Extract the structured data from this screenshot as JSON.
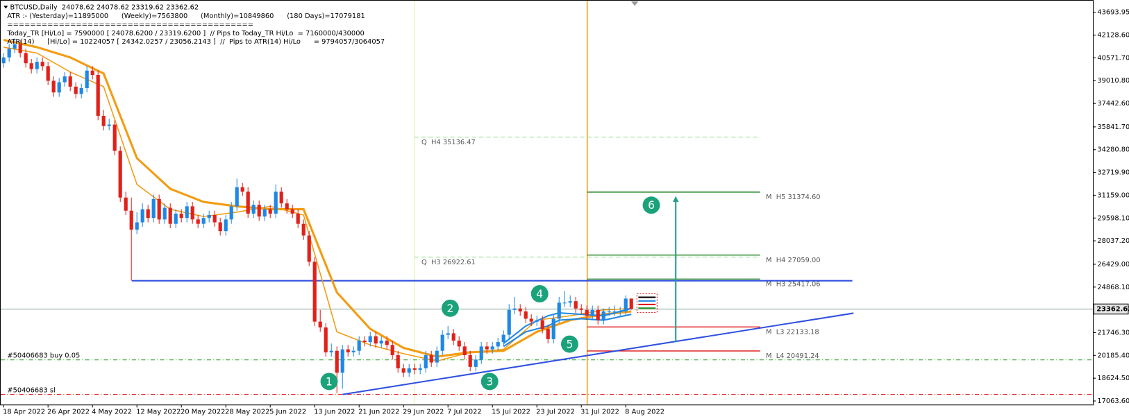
{
  "chart_data": {
    "type": "candlestick",
    "title": "BTCUSD,Daily  24078.62 24078.62 23319.62 23362.62",
    "info_lines": [
      "ATR :- (Yesterday)=11895000      (Weekly)=7563800      (Monthly)=10849860      (180 Days)=17079181",
      "===========================================",
      "Today_TR [Hi/Lo] = 7590000 [ 24078.6200 / 23319.6200 ]  // Pips to Today_TR Hi/Lo  = 7160000/430000",
      "ATR(14)      [Hi/Lo] = 10224057 [ 24342.0257 / 23056.2143 ]  //  Pips to ATR(14) Hi/Lo      = 9794057/3064057"
    ],
    "up_color": "#1e88e5",
    "down_color": "#e0211a",
    "categories": [
      "18 Apr 2022",
      null,
      null,
      null,
      null,
      null,
      null,
      null,
      "26 Apr 2022",
      null,
      null,
      null,
      null,
      null,
      null,
      null,
      "4 May 2022",
      null,
      null,
      null,
      null,
      null,
      null,
      null,
      "12 May 2022",
      null,
      null,
      null,
      null,
      null,
      null,
      null,
      "20 May 2022",
      null,
      null,
      null,
      null,
      null,
      null,
      null,
      "28 May 2022",
      null,
      null,
      null,
      null,
      null,
      null,
      null,
      "5 Jun 2022",
      null,
      null,
      null,
      null,
      null,
      null,
      null,
      "13 Jun 2022",
      null,
      null,
      null,
      null,
      null,
      null,
      null,
      "21 Jun 2022",
      null,
      null,
      null,
      null,
      null,
      null,
      null,
      "29 Jun 2022",
      null,
      null,
      null,
      null,
      null,
      null,
      null,
      "7 Jul 2022",
      null,
      null,
      null,
      null,
      null,
      null,
      null,
      "15 Jul 2022",
      null,
      null,
      null,
      null,
      null,
      null,
      null,
      "23 Jul 2022",
      null,
      null,
      null,
      null,
      null,
      null,
      null,
      "31 Jul 2022",
      null,
      null,
      null,
      null,
      null,
      null,
      null,
      "8 Aug 2022",
      null
    ],
    "ohlc": [
      [
        40200,
        40900,
        39900,
        40600
      ],
      [
        40600,
        41500,
        40300,
        41200
      ],
      [
        41200,
        41900,
        40900,
        41500
      ],
      [
        41500,
        41800,
        40600,
        40900
      ],
      [
        40900,
        41200,
        39900,
        40200
      ],
      [
        40200,
        40500,
        39500,
        39800
      ],
      [
        39800,
        40600,
        39500,
        40300
      ],
      [
        40300,
        40600,
        39700,
        40000
      ],
      [
        40000,
        40300,
        38700,
        39000
      ],
      [
        39000,
        39300,
        37900,
        38200
      ],
      [
        38200,
        39200,
        37900,
        38900
      ],
      [
        38900,
        39600,
        38600,
        39300
      ],
      [
        39300,
        39600,
        38300,
        38600
      ],
      [
        38600,
        38900,
        37800,
        38100
      ],
      [
        38100,
        38800,
        37800,
        38500
      ],
      [
        38500,
        40000,
        38200,
        39700
      ],
      [
        39700,
        40000,
        39100,
        39400
      ],
      [
        39400,
        39700,
        36300,
        36600
      ],
      [
        36600,
        37000,
        35600,
        35900
      ],
      [
        35900,
        36400,
        35600,
        36000
      ],
      [
        36000,
        36300,
        33900,
        34200
      ],
      [
        34200,
        34500,
        30700,
        31000
      ],
      [
        31000,
        31400,
        29800,
        30100
      ],
      [
        30100,
        31000,
        25300,
        28800
      ],
      [
        28800,
        30000,
        28500,
        29300
      ],
      [
        29300,
        30600,
        29000,
        30200
      ],
      [
        30200,
        30500,
        29300,
        29600
      ],
      [
        29600,
        31200,
        29300,
        30900
      ],
      [
        30900,
        31200,
        29200,
        29500
      ],
      [
        29500,
        30600,
        29200,
        30300
      ],
      [
        30300,
        30600,
        28900,
        29200
      ],
      [
        29200,
        30200,
        28900,
        29900
      ],
      [
        29900,
        30200,
        29300,
        29600
      ],
      [
        29600,
        30700,
        29300,
        30400
      ],
      [
        30400,
        30700,
        29200,
        29500
      ],
      [
        29500,
        29800,
        28900,
        29200
      ],
      [
        29200,
        29900,
        28900,
        29600
      ],
      [
        29600,
        30100,
        29300,
        29800
      ],
      [
        29800,
        30100,
        29000,
        29300
      ],
      [
        29300,
        29600,
        28400,
        28700
      ],
      [
        28700,
        29800,
        28400,
        29500
      ],
      [
        29500,
        30700,
        29200,
        30400
      ],
      [
        30400,
        32300,
        30100,
        31700
      ],
      [
        31700,
        32000,
        31100,
        31400
      ],
      [
        31400,
        31700,
        29600,
        29900
      ],
      [
        29900,
        30800,
        29600,
        30500
      ],
      [
        30500,
        30800,
        29400,
        29700
      ],
      [
        29700,
        30500,
        29400,
        30200
      ],
      [
        30200,
        30500,
        29600,
        29900
      ],
      [
        29900,
        31900,
        29600,
        31400
      ],
      [
        31400,
        31700,
        30300,
        30600
      ],
      [
        30600,
        30900,
        29900,
        30200
      ],
      [
        30200,
        30500,
        29600,
        29900
      ],
      [
        29900,
        30200,
        28900,
        29200
      ],
      [
        29200,
        29500,
        28100,
        28400
      ],
      [
        28400,
        28700,
        26300,
        26600
      ],
      [
        26600,
        26900,
        22200,
        22500
      ],
      [
        22500,
        23300,
        21800,
        22100
      ],
      [
        22100,
        22400,
        20100,
        20400
      ],
      [
        20400,
        21000,
        20100,
        20500
      ],
      [
        20500,
        20800,
        17600,
        19000
      ],
      [
        19000,
        20900,
        17900,
        20600
      ],
      [
        20600,
        20900,
        20100,
        20400
      ],
      [
        20400,
        20800,
        20100,
        20500
      ],
      [
        20500,
        21500,
        20200,
        21200
      ],
      [
        21200,
        21500,
        20800,
        21100
      ],
      [
        21100,
        21800,
        20800,
        21500
      ],
      [
        21500,
        21800,
        20700,
        21000
      ],
      [
        21000,
        21500,
        20700,
        21200
      ],
      [
        21200,
        21500,
        20600,
        20900
      ],
      [
        20900,
        21200,
        19900,
        20200
      ],
      [
        20200,
        20500,
        19000,
        19300
      ],
      [
        19300,
        19600,
        18700,
        19000
      ],
      [
        19000,
        19600,
        18700,
        19300
      ],
      [
        19300,
        19600,
        18900,
        19200
      ],
      [
        19200,
        19600,
        18900,
        19300
      ],
      [
        19300,
        20500,
        19000,
        20200
      ],
      [
        20200,
        20500,
        19400,
        19700
      ],
      [
        19700,
        20800,
        19400,
        20500
      ],
      [
        20500,
        21900,
        20200,
        21600
      ],
      [
        21600,
        22200,
        21300,
        21700
      ],
      [
        21700,
        22000,
        20900,
        21200
      ],
      [
        21200,
        21500,
        20500,
        20800
      ],
      [
        20800,
        21100,
        19900,
        20200
      ],
      [
        20200,
        20500,
        19100,
        19400
      ],
      [
        19400,
        20200,
        19100,
        19900
      ],
      [
        19900,
        21100,
        19600,
        20800
      ],
      [
        20800,
        21100,
        20300,
        20600
      ],
      [
        20600,
        21100,
        20300,
        20800
      ],
      [
        20800,
        21400,
        20500,
        21100
      ],
      [
        21100,
        21900,
        20800,
        21600
      ],
      [
        21600,
        23700,
        21300,
        23300
      ],
      [
        23300,
        24200,
        23000,
        23400
      ],
      [
        23400,
        23700,
        22900,
        23200
      ],
      [
        23200,
        23500,
        22400,
        22700
      ],
      [
        22700,
        23000,
        22200,
        22500
      ],
      [
        22500,
        22900,
        22200,
        22600
      ],
      [
        22600,
        22900,
        21700,
        22000
      ],
      [
        22000,
        22300,
        21000,
        21300
      ],
      [
        21300,
        23000,
        21000,
        22700
      ],
      [
        22700,
        24200,
        22400,
        23800
      ],
      [
        23800,
        24600,
        23500,
        23800
      ],
      [
        23800,
        24300,
        23500,
        23900
      ],
      [
        23900,
        24200,
        23100,
        23400
      ],
      [
        23400,
        23700,
        23000,
        23300
      ],
      [
        23300,
        23600,
        22600,
        22900
      ],
      [
        22900,
        23600,
        22600,
        23300
      ],
      [
        23300,
        23600,
        22300,
        22600
      ],
      [
        22600,
        23400,
        22300,
        23200
      ],
      [
        23200,
        23500,
        22900,
        23200
      ],
      [
        23200,
        23600,
        22900,
        23200
      ],
      [
        23200,
        23500,
        22900,
        23200
      ],
      [
        23200,
        24300,
        22900,
        24078.62
      ],
      [
        24078.62,
        24078.62,
        23319.62,
        23362.62
      ]
    ],
    "ma": [
      {
        "color": "#f39c12",
        "width": 3,
        "x": [
          0,
          6,
          12,
          18,
          24,
          30,
          36,
          42,
          48,
          54,
          60,
          66,
          72,
          78,
          84,
          90,
          96,
          102,
          108,
          113
        ],
        "values": [
          41800,
          41300,
          40600,
          39500,
          33700,
          31600,
          30700,
          30400,
          30200,
          30200,
          24500,
          22000,
          20700,
          20100,
          20400,
          20500,
          21800,
          22600,
          23000,
          23200
        ]
      },
      {
        "color": "#f39c12",
        "width": 1.5,
        "x": [
          0,
          6,
          12,
          18,
          24,
          30,
          36,
          42,
          48,
          54,
          60,
          66,
          72,
          78,
          84,
          90,
          96,
          102,
          108,
          113
        ],
        "values": [
          41300,
          40900,
          39600,
          38600,
          31900,
          30200,
          29700,
          30000,
          30400,
          29800,
          21800,
          20900,
          20300,
          19800,
          20400,
          20600,
          22600,
          22900,
          23300,
          23400
        ]
      },
      {
        "color": "#1e88e5",
        "width": 2,
        "x": [
          90,
          94,
          98,
          100,
          104,
          108,
          113
        ],
        "values": [
          21000,
          22200,
          22900,
          23100,
          23000,
          22900,
          23400
        ]
      },
      {
        "color": "#1e88e5",
        "width": 2,
        "x": [
          90,
          94,
          98,
          100,
          104,
          108,
          113
        ],
        "values": [
          20800,
          21800,
          22200,
          22600,
          22700,
          22600,
          23000
        ]
      }
    ],
    "ylim": [
      17063.6,
      43693.95
    ],
    "yticks": [
      43693.95,
      {
        "value": 42128.6,
        "label": "42128.60"
      },
      {
        "value": 40571.7,
        "label": "40571.70"
      },
      {
        "value": 39010.8,
        "label": "39010.80"
      },
      {
        "value": 37442.6,
        "label": "37442.60"
      },
      {
        "value": 35841.7,
        "label": "35841.70"
      },
      {
        "value": 34280.8,
        "label": "34280.80"
      },
      {
        "value": 32719.9,
        "label": "32719.90"
      },
      {
        "value": 31159,
        "label": "31159.00"
      },
      {
        "value": 29598.1,
        "label": "29598.10"
      },
      {
        "value": 28037.2,
        "label": "28037.20"
      },
      {
        "value": 26429,
        "label": "26429.00"
      },
      {
        "value": 24868.1,
        "label": "24868.10"
      },
      {
        "value": 21746.3,
        "label": "21746.30"
      },
      {
        "value": 20185.4,
        "label": "20185.40"
      },
      {
        "value": 18624.5,
        "label": "18624.50"
      },
      {
        "value": 17063.6,
        "label": "17063.60"
      }
    ],
    "last_price": 23362.62,
    "quarter_levels": [
      {
        "label": "Q  H4 35136.47",
        "value": 35136.47,
        "color": "#8ee08e"
      },
      {
        "label": "Q  H3 26922.61",
        "value": 26922.61,
        "color": "#8ee08e"
      }
    ],
    "month_levels": [
      {
        "label": "M  H5 31374.60",
        "value": 31374.6,
        "color": "#1a7f1a"
      },
      {
        "label": "M  H4 27059.00",
        "value": 27059,
        "color": "#1a7f1a"
      },
      {
        "label": "M  H3 25417.06",
        "value": 25417.06,
        "color": "#1a7f1a"
      },
      {
        "label": "M  L3 22133.18",
        "value": 22133.18,
        "color": "#e01010"
      },
      {
        "label": "M  L4 20491.24",
        "value": 20491.24,
        "color": "#e01010"
      }
    ],
    "orders": [
      {
        "label": "#50406683 buy 0.05",
        "value": 19880,
        "color": "#2e9b2e"
      },
      {
        "label": "#50406683 sl",
        "value": 17510,
        "color": "#e01010"
      }
    ],
    "support_line": 25300,
    "trend_line": {
      "x": [
        61,
        153
      ],
      "values": [
        17510,
        23080
      ]
    },
    "arrow": {
      "x": 121,
      "values": [
        21100,
        31100
      ]
    },
    "waves": [
      {
        "label": "1",
        "x": 58.6,
        "value": 18400
      },
      {
        "label": "2",
        "x": 80.4,
        "value": 23420
      },
      {
        "label": "3",
        "x": 87.5,
        "value": 18400
      },
      {
        "label": "4",
        "x": 96.5,
        "value": 24410
      },
      {
        "label": "5",
        "x": 101.9,
        "value": 20960
      },
      {
        "label": "6",
        "x": 116.6,
        "value": 30480
      }
    ]
  }
}
